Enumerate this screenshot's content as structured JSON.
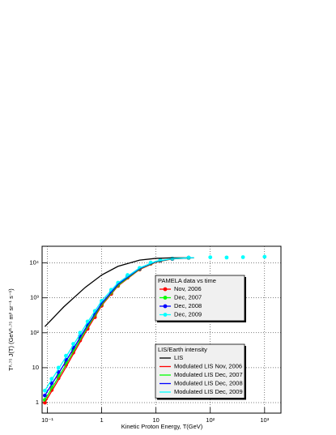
{
  "chart_data": {
    "type": "scatter",
    "x_label": "Kinetic Proton Energy, T(GeV)",
    "y_label": "T²·⁷⁵ J(T) (GeV¹·⁷⁵ m² sr⁻¹ s⁻¹)",
    "log_x": true,
    "log_y": true,
    "grid": true,
    "xlim": [
      0.08,
      2000
    ],
    "ylim": [
      0.5,
      30000
    ],
    "xticks": [
      {
        "value": 0.1,
        "label": "10⁻¹"
      },
      1,
      10,
      {
        "value": 100,
        "label": "10²"
      },
      {
        "value": 1000,
        "label": "10³"
      }
    ],
    "yticks": [
      1,
      10,
      {
        "value": 100,
        "label": "10²"
      },
      {
        "value": 1000,
        "label": "10³"
      },
      {
        "value": 10000,
        "label": "10⁴"
      }
    ],
    "data_legend_title": "PAMELA data vs time",
    "model_legend_title": "LIS/Earth intensity",
    "series": [
      {
        "name": "Nov, 2006",
        "style": "markers",
        "color": "#ff0000",
        "x": [
          0.09,
          0.12,
          0.16,
          0.22,
          0.3,
          0.4,
          0.55,
          0.75,
          1,
          1.5,
          2,
          3,
          5,
          8,
          12,
          20,
          40
        ],
        "values": [
          1,
          2.3,
          5,
          12,
          27,
          60,
          130,
          280,
          600,
          1300,
          2200,
          3800,
          6500,
          9500,
          11500,
          13000,
          14000
        ]
      },
      {
        "name": "Dec, 2007",
        "style": "markers",
        "color": "#00ff00",
        "x": [
          0.09,
          0.12,
          0.16,
          0.22,
          0.3,
          0.4,
          0.55,
          0.75,
          1,
          1.5,
          2,
          3,
          5,
          8,
          12,
          20,
          40
        ],
        "values": [
          1.2,
          2.8,
          6,
          14,
          32,
          70,
          150,
          320,
          650,
          1400,
          2300,
          4000,
          6700,
          9700,
          11700,
          13100,
          14000
        ]
      },
      {
        "name": "Dec, 2008",
        "style": "markers",
        "color": "#0000ff",
        "x": [
          0.09,
          0.12,
          0.16,
          0.22,
          0.3,
          0.4,
          0.55,
          0.75,
          1,
          1.5,
          2,
          3,
          5,
          8,
          12,
          20,
          40
        ],
        "values": [
          1.6,
          3.6,
          7.5,
          17,
          38,
          80,
          170,
          350,
          700,
          1500,
          2450,
          4200,
          6900,
          9900,
          11800,
          13200,
          14100
        ]
      },
      {
        "name": "Dec, 2009",
        "style": "markers",
        "color": "#00ffff",
        "x": [
          0.09,
          0.12,
          0.16,
          0.22,
          0.3,
          0.4,
          0.55,
          0.75,
          1,
          1.5,
          2,
          3,
          5,
          8,
          12,
          20,
          40,
          100,
          200,
          400,
          1000
        ],
        "values": [
          2.2,
          4.8,
          10,
          22,
          48,
          100,
          210,
          420,
          820,
          1700,
          2700,
          4500,
          7200,
          10200,
          12000,
          13300,
          14200,
          14500,
          14300,
          14600,
          15000
        ]
      },
      {
        "name": "LIS",
        "style": "line",
        "color": "#000000",
        "x": [
          0.09,
          0.2,
          0.5,
          1,
          2,
          5,
          10,
          20,
          50
        ],
        "values": [
          150,
          550,
          2000,
          4500,
          8000,
          12000,
          13500,
          14000,
          14000
        ]
      },
      {
        "name": "Modulated LIS Nov, 2006",
        "style": "line",
        "color": "#ff0000",
        "x": [
          0.09,
          0.2,
          0.5,
          1,
          2,
          5,
          10,
          20,
          50
        ],
        "values": [
          1,
          8,
          100,
          600,
          2200,
          6500,
          10500,
          13000,
          14000
        ]
      },
      {
        "name": "Modulated LIS Dec, 2007",
        "style": "line",
        "color": "#00ff00",
        "x": [
          0.09,
          0.2,
          0.5,
          1,
          2,
          5,
          10,
          20,
          50
        ],
        "values": [
          1.2,
          9.5,
          115,
          650,
          2300,
          6700,
          10700,
          13100,
          14000
        ]
      },
      {
        "name": "Modulated LIS Dec, 2008",
        "style": "line",
        "color": "#0000ff",
        "x": [
          0.09,
          0.2,
          0.5,
          1,
          2,
          5,
          10,
          20,
          50
        ],
        "values": [
          1.6,
          12,
          130,
          700,
          2450,
          6900,
          10900,
          13200,
          14100
        ]
      },
      {
        "name": "Modulated LIS Dec, 2009",
        "style": "line",
        "color": "#00ffff",
        "x": [
          0.09,
          0.2,
          0.5,
          1,
          2,
          5,
          10,
          20,
          50
        ],
        "values": [
          2.2,
          16,
          160,
          820,
          2700,
          7200,
          11200,
          13300,
          14200
        ]
      }
    ]
  }
}
